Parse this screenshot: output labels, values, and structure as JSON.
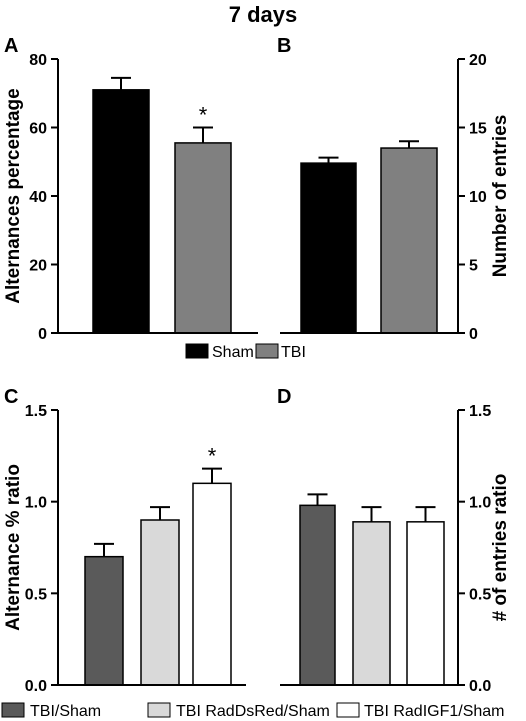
{
  "figure": {
    "title": "7 days",
    "colors": {
      "Sham": "#000000",
      "TBI": "#808080",
      "TBI/Sham": "#5a5a5a",
      "TBI RadDsRed/Sham": "#d9d9d9",
      "TBI RadIGF1/Sham": "#ffffff"
    },
    "legend_top": [
      "Sham",
      "TBI"
    ],
    "legend_bottom": [
      "TBI/Sham",
      "TBI RadDsRed/Sham",
      "TBI RadIGF1/Sham"
    ]
  },
  "chart_data": [
    {
      "panel": "A",
      "type": "bar",
      "ylabel": "Alternances percentage",
      "ylim": [
        0,
        80
      ],
      "yticks": [
        0,
        20,
        40,
        60,
        80
      ],
      "y_axis_side": "left",
      "categories": [
        "Sham",
        "TBI"
      ],
      "values": [
        71,
        55.5
      ],
      "errors": [
        3.5,
        4.5
      ],
      "significance": [
        "",
        "*"
      ]
    },
    {
      "panel": "B",
      "type": "bar",
      "ylabel": "Number of entries",
      "ylim": [
        0,
        20
      ],
      "yticks": [
        0,
        5,
        10,
        15,
        20
      ],
      "y_axis_side": "right",
      "categories": [
        "Sham",
        "TBI"
      ],
      "values": [
        12.4,
        13.5
      ],
      "errors": [
        0.4,
        0.5
      ],
      "significance": [
        "",
        ""
      ]
    },
    {
      "panel": "C",
      "type": "bar",
      "ylabel": "Alternance % ratio",
      "ylim": [
        0,
        1.5
      ],
      "yticks": [
        "0.0",
        "0.5",
        "1.0",
        "1.5"
      ],
      "y_axis_side": "left",
      "categories": [
        "TBI/Sham",
        "TBI RadDsRed/Sham",
        "TBI RadIGF1/Sham"
      ],
      "values": [
        0.7,
        0.9,
        1.1
      ],
      "errors": [
        0.07,
        0.07,
        0.08
      ],
      "significance": [
        "",
        "",
        "*"
      ]
    },
    {
      "panel": "D",
      "type": "bar",
      "ylabel": "# of entries ratio",
      "ylim": [
        0,
        1.5
      ],
      "yticks": [
        "0.0",
        "0.5",
        "1.0",
        "1.5"
      ],
      "y_axis_side": "right",
      "categories": [
        "TBI/Sham",
        "TBI RadDsRed/Sham",
        "TBI RadIGF1/Sham"
      ],
      "values": [
        0.98,
        0.89,
        0.89
      ],
      "errors": [
        0.06,
        0.08,
        0.08
      ],
      "significance": [
        "",
        "",
        ""
      ]
    }
  ]
}
